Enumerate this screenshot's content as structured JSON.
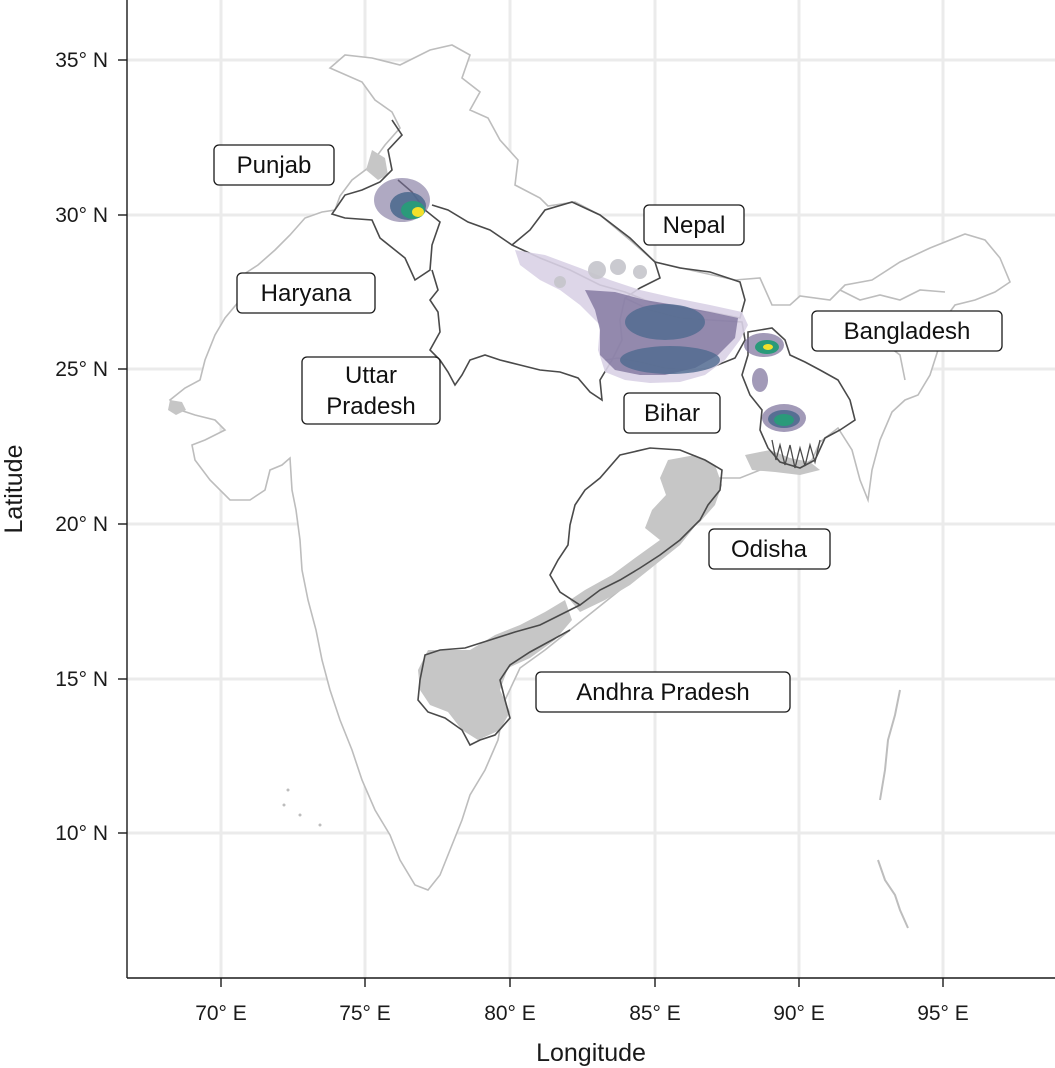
{
  "map": {
    "xlabel": "Longitude",
    "ylabel": "Latitude",
    "x_ticks": [
      "70° E",
      "75° E",
      "80° E",
      "85° E",
      "90° E",
      "95° E"
    ],
    "y_ticks": [
      "35° N",
      "30° N",
      "25° N",
      "20° N",
      "15° N",
      "10° N"
    ],
    "labels": {
      "punjab": "Punjab",
      "haryana": "Haryana",
      "uttar_pradesh_1": "Uttar",
      "uttar_pradesh_2": "Pradesh",
      "nepal": "Nepal",
      "bihar": "Bihar",
      "bangladesh": "Bangladesh",
      "odisha": "Odisha",
      "andhra_pradesh": "Andhra Pradesh"
    }
  },
  "colors": {
    "grid": "#ebebeb",
    "country_outline": "#bdbdbd",
    "state_outline": "#4a4a4a",
    "gray_fill": "#c6c6c6",
    "density_low": "#d9d2e6",
    "density_mid": "#7a6f9a",
    "density_blue": "#4f6a8f",
    "density_green": "#2a9a7a",
    "density_peak": "#f4e02a"
  }
}
